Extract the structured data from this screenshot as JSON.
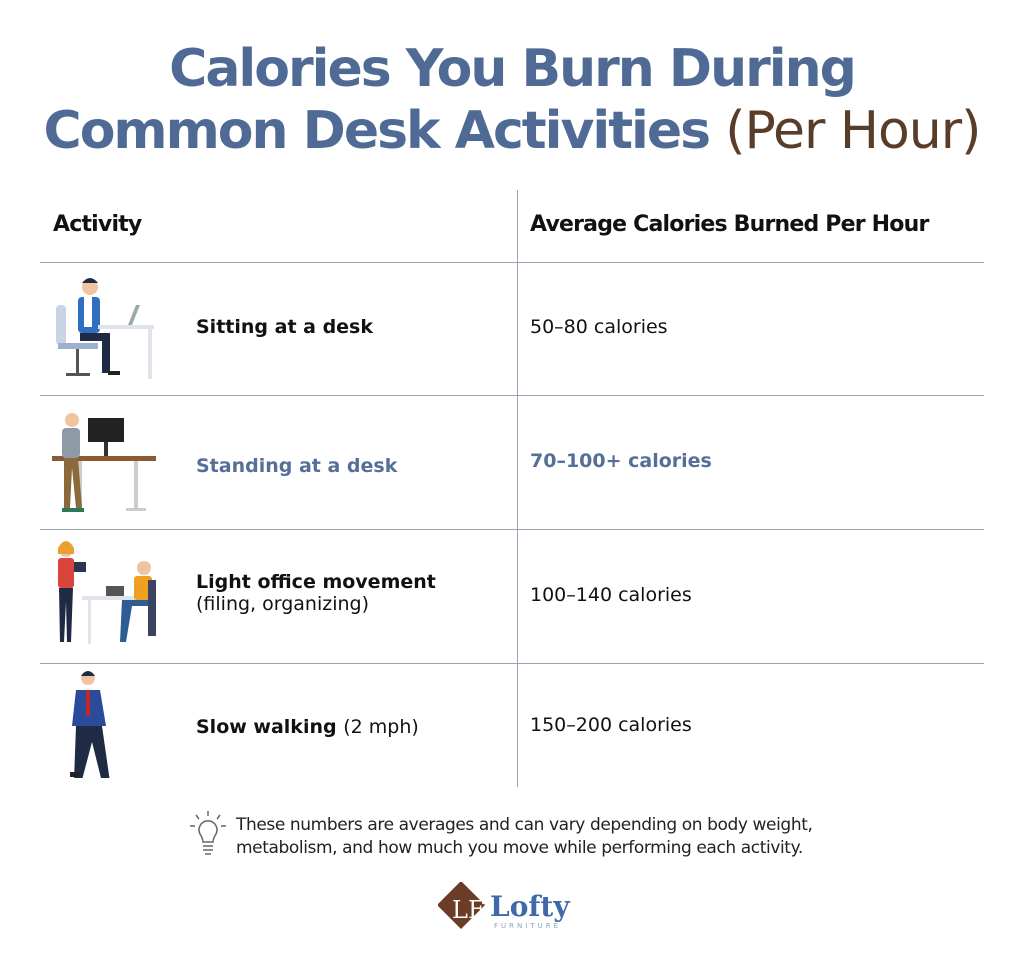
{
  "title": {
    "line1": "Calories You Burn During",
    "line2": "Common Desk Activities",
    "suffix": "(Per Hour)"
  },
  "table": {
    "headers": [
      "Activity",
      "Average Calories Burned Per Hour"
    ],
    "rows": [
      {
        "activity": "Sitting at a desk",
        "note": "",
        "calories": "50–80 calories",
        "icon": "sitting-person-illustration",
        "highlight": false
      },
      {
        "activity": "Standing at a desk",
        "note": "",
        "calories": "70–100+ calories",
        "icon": "standing-desk-illustration",
        "highlight": true
      },
      {
        "activity": "Light office movement",
        "note": "(filing, organizing)",
        "calories": "100–140 calories",
        "icon": "office-movement-illustration",
        "highlight": false
      },
      {
        "activity": "Slow walking",
        "note": "(2 mph)",
        "calories": "150–200 calories",
        "icon": "walking-person-illustration",
        "highlight": false
      }
    ]
  },
  "footnote": {
    "icon": "lightbulb-icon",
    "line1": "These numbers are averages and can vary depending on body weight,",
    "line2": "metabolism, and how much you move while performing each activity."
  },
  "logo": {
    "name": "Lofty",
    "tagline": "FURNITURE"
  },
  "colors": {
    "title": "#4f6a94",
    "subtitle": "#5a3d29",
    "highlight": "#556f98"
  }
}
